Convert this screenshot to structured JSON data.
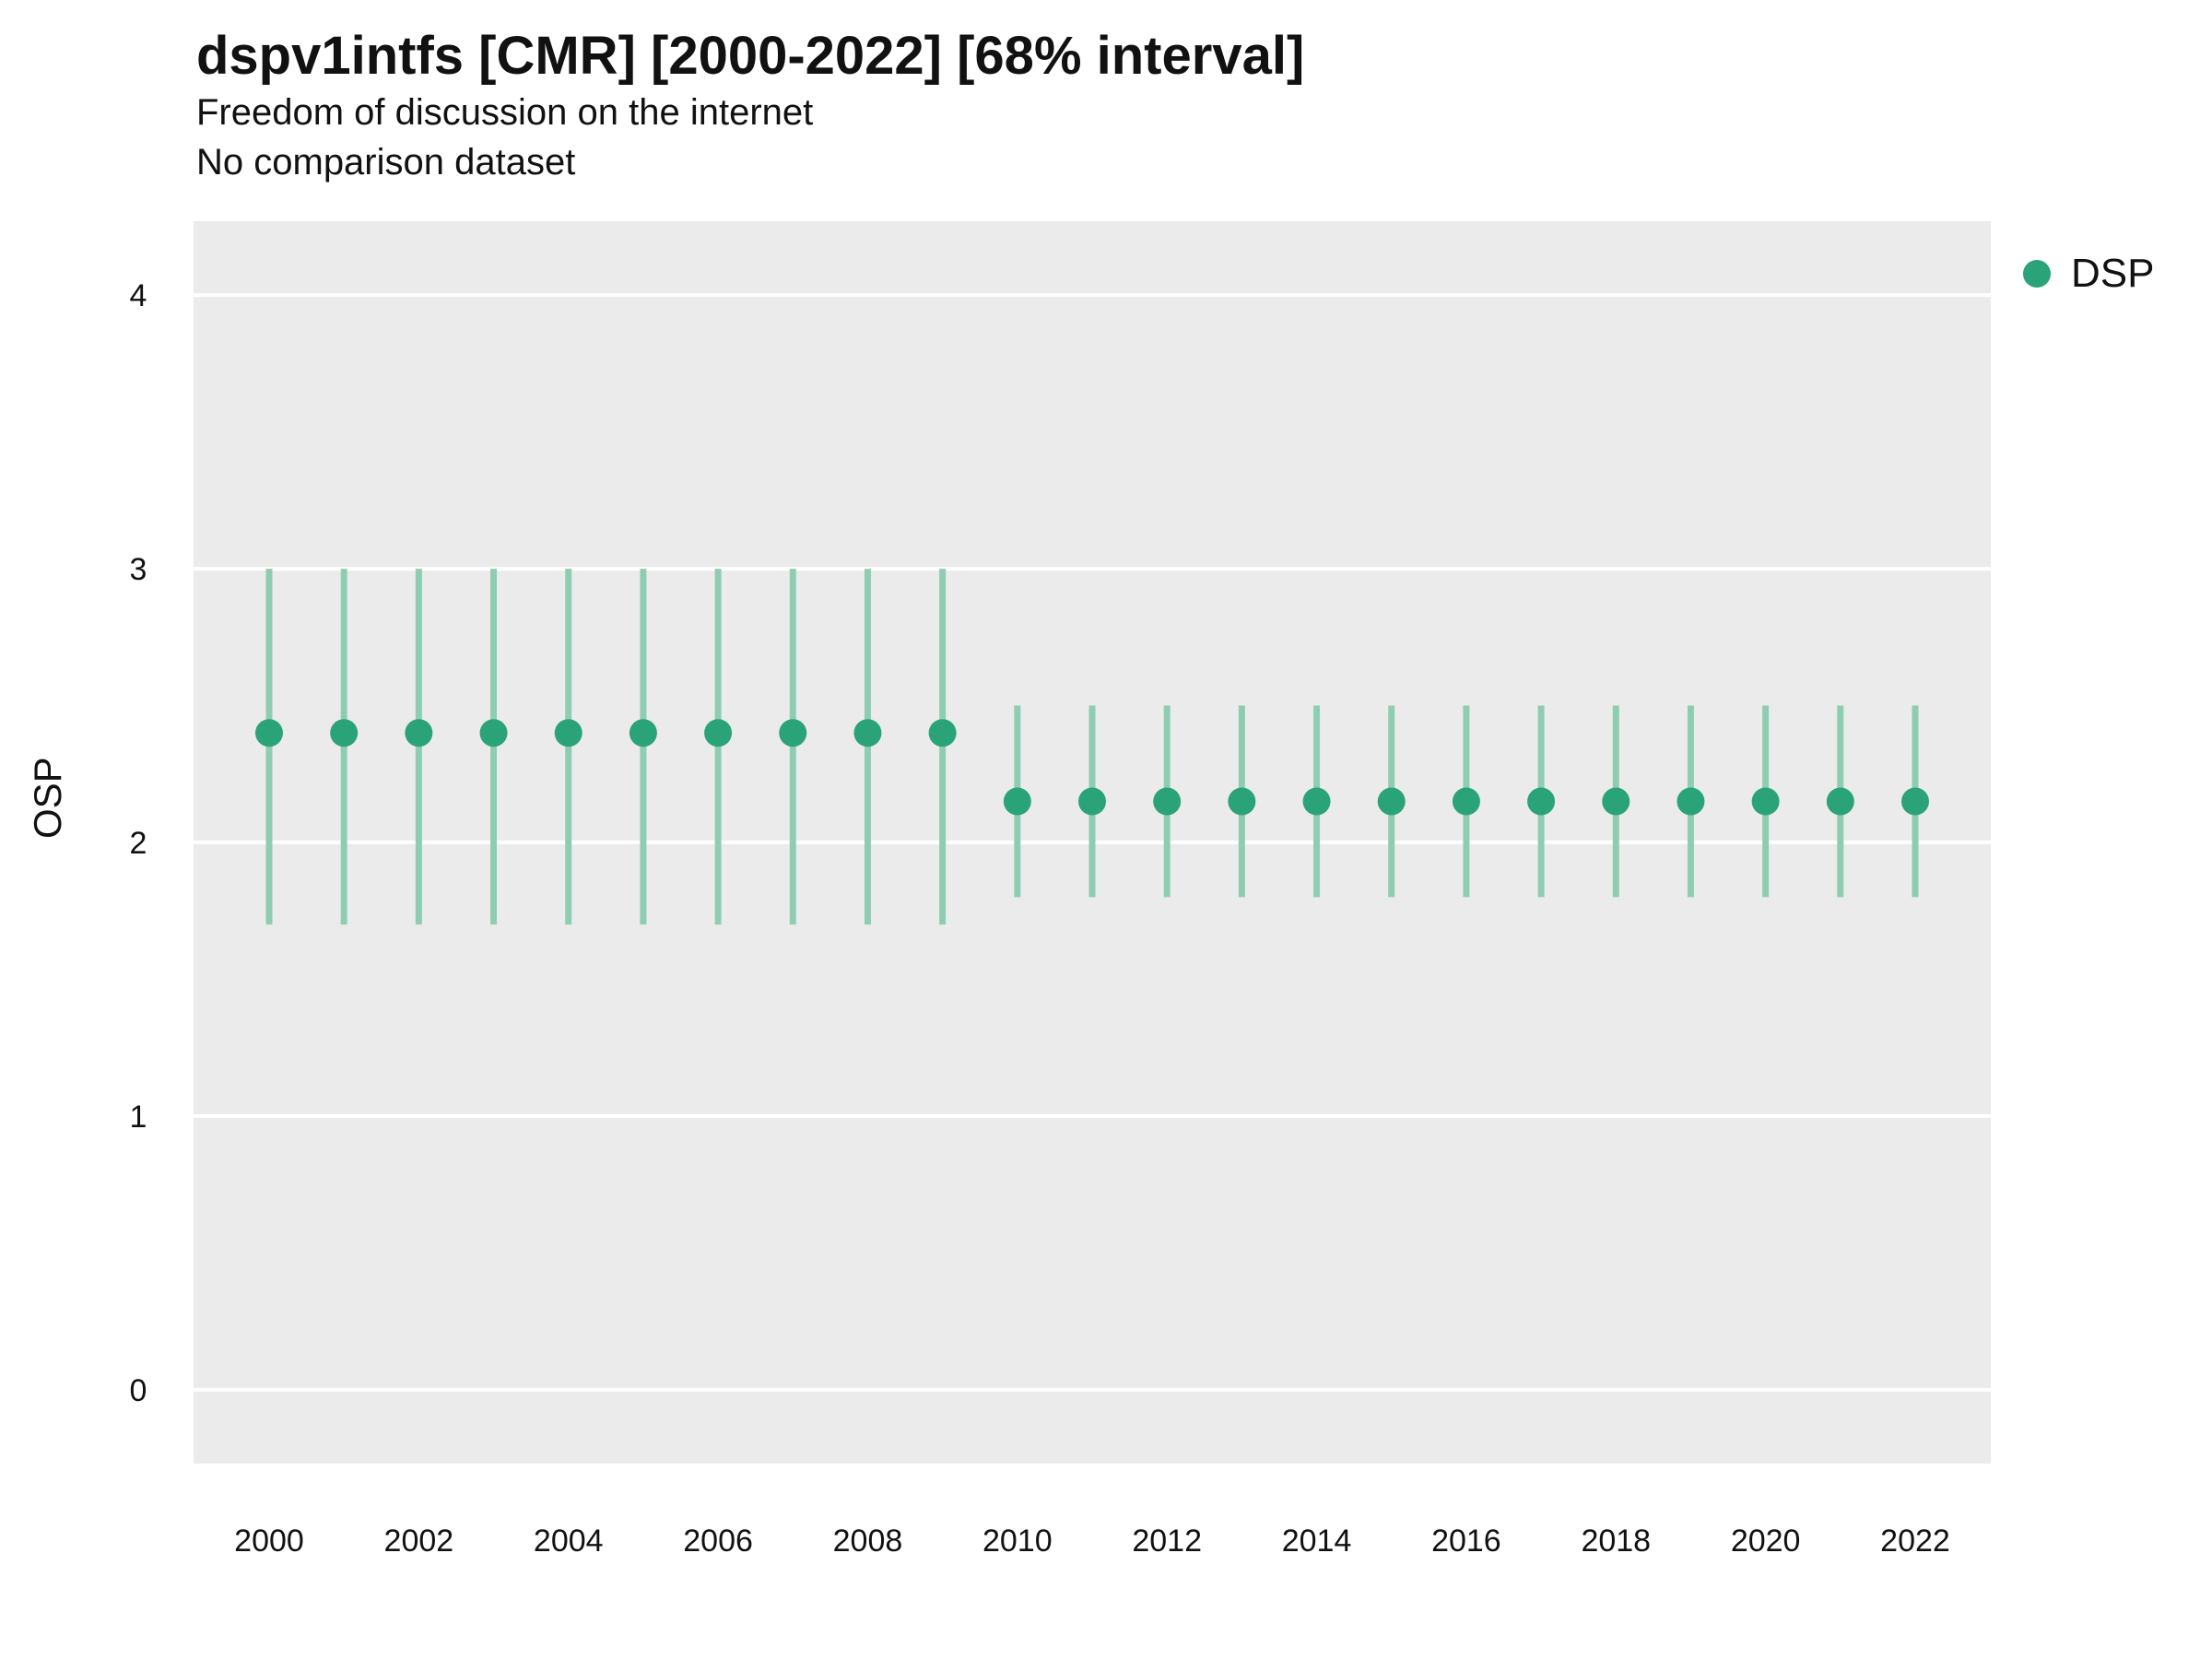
{
  "header": {
    "title": "dspv1intfs [CMR] [2000-2022] [68% interval]",
    "subtitle1": "Freedom of discussion on the internet",
    "subtitle2": "No comparison dataset"
  },
  "legend": {
    "label": "DSP"
  },
  "colors": {
    "point": "#2BA379",
    "range_line": "#8FCDB2",
    "panel_background": "#EBEBEB",
    "gridline": "#FFFFFF",
    "text": "#111111"
  },
  "chart_data": {
    "type": "pointrange",
    "title": "dspv1intfs [CMR] [2000-2022] [68% interval]",
    "subtitle": "Freedom of discussion on the internet",
    "note": "No comparison dataset",
    "xlabel": "",
    "ylabel": "OSP",
    "legend_position": "right",
    "grid": true,
    "x": [
      2000,
      2001,
      2002,
      2003,
      2004,
      2005,
      2006,
      2007,
      2008,
      2009,
      2010,
      2011,
      2012,
      2013,
      2014,
      2015,
      2016,
      2017,
      2018,
      2019,
      2020,
      2021,
      2022
    ],
    "series": [
      {
        "name": "DSP",
        "values": [
          2.4,
          2.4,
          2.4,
          2.4,
          2.4,
          2.4,
          2.4,
          2.4,
          2.4,
          2.4,
          2.15,
          2.15,
          2.15,
          2.15,
          2.15,
          2.15,
          2.15,
          2.15,
          2.15,
          2.15,
          2.15,
          2.15,
          2.15
        ],
        "lower": [
          1.7,
          1.7,
          1.7,
          1.7,
          1.7,
          1.7,
          1.7,
          1.7,
          1.7,
          1.7,
          1.8,
          1.8,
          1.8,
          1.8,
          1.8,
          1.8,
          1.8,
          1.8,
          1.8,
          1.8,
          1.8,
          1.8,
          1.8
        ],
        "upper": [
          3.0,
          3.0,
          3.0,
          3.0,
          3.0,
          3.0,
          3.0,
          3.0,
          3.0,
          3.0,
          2.5,
          2.5,
          2.5,
          2.5,
          2.5,
          2.5,
          2.5,
          2.5,
          2.5,
          2.5,
          2.5,
          2.5,
          2.5
        ]
      }
    ],
    "xticks": [
      2000,
      2002,
      2004,
      2006,
      2008,
      2010,
      2012,
      2014,
      2016,
      2018,
      2020,
      2022
    ],
    "yticks": [
      0,
      1,
      2,
      3,
      4
    ],
    "ylim": [
      -0.27,
      4.27
    ],
    "interval_label": "68% interval"
  }
}
